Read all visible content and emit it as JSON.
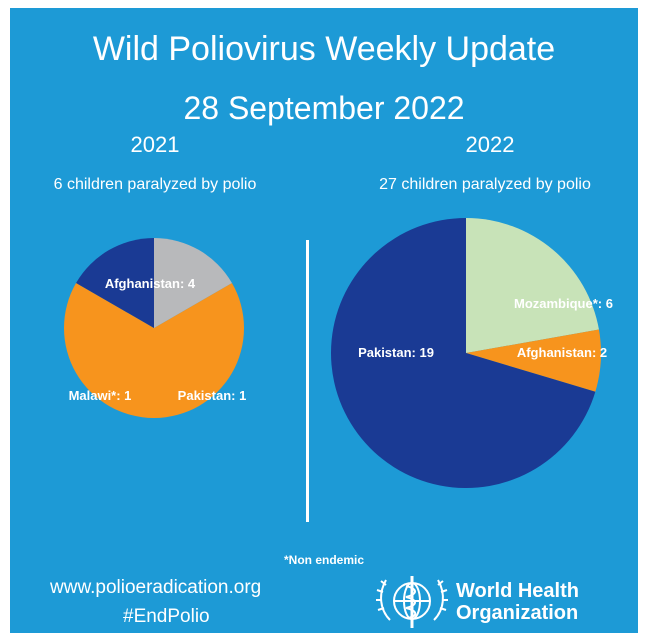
{
  "header": {
    "title": "Wild Poliovirus Weekly Update",
    "date": "28 September 2022"
  },
  "chart_data": [
    {
      "type": "pie",
      "title": "2021",
      "subtitle": "6 children paralyzed by polio",
      "slices": [
        {
          "label": "Afghanistan: 4",
          "name": "Afghanistan",
          "value": 4,
          "color": "#f7941d"
        },
        {
          "label": "Pakistan: 1",
          "name": "Pakistan",
          "value": 1,
          "color": "#1a3a94"
        },
        {
          "label": "Malawi*: 1",
          "name": "Malawi*",
          "value": 1,
          "color": "#b8b9bb"
        }
      ]
    },
    {
      "type": "pie",
      "title": "2022",
      "subtitle": "27 children paralyzed by polio",
      "slices": [
        {
          "label": "Mozambique*: 6",
          "name": "Mozambique*",
          "value": 6,
          "color": "#c8e3b8"
        },
        {
          "label": "Afghanistan: 2",
          "name": "Afghanistan",
          "value": 2,
          "color": "#f7941d"
        },
        {
          "label": "Pakistan: 19",
          "name": "Pakistan",
          "value": 19,
          "color": "#1a3a94"
        }
      ]
    }
  ],
  "footer": {
    "footnote": "*Non endemic",
    "url": "www.polioeradication.org",
    "hashtag": "#EndPolio",
    "org_line1": "World Health",
    "org_line2": "Organization",
    "logo_icon": "who-emblem-icon"
  },
  "colors": {
    "background": "#1d9ad6",
    "text": "#ffffff"
  }
}
